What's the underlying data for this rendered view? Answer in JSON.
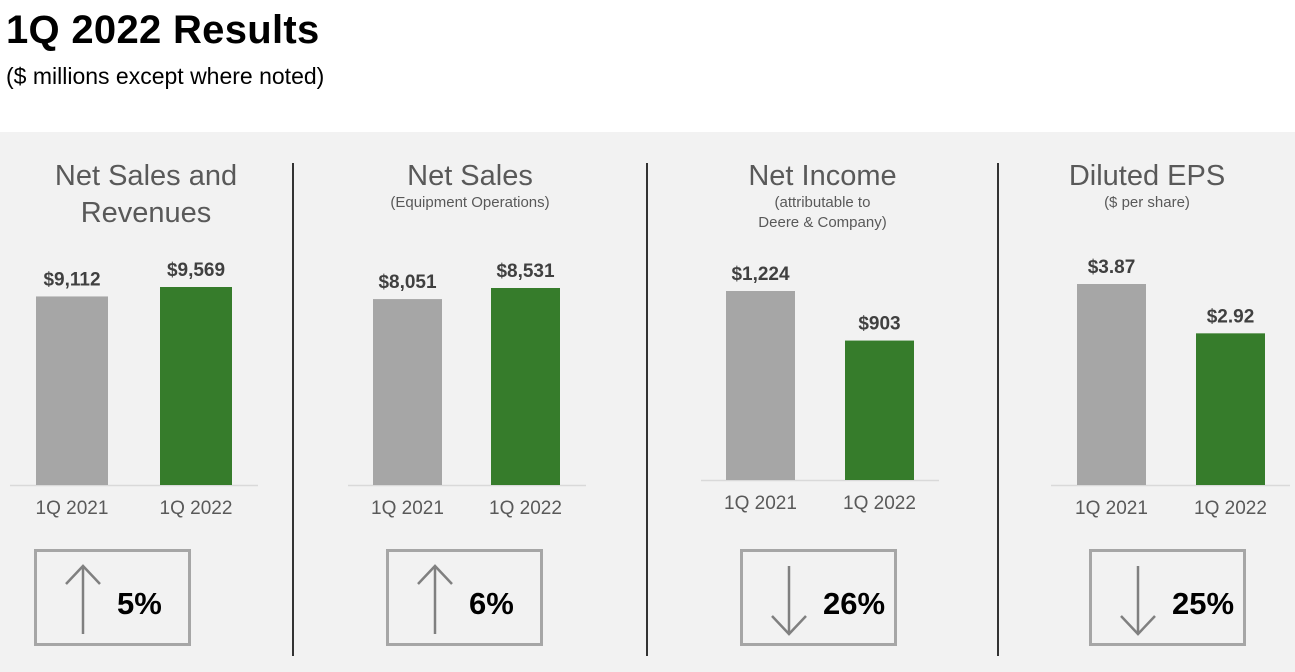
{
  "title": "1Q 2022 Results",
  "subtitle": "($ millions except where noted)",
  "colors": {
    "prior": "#a6a6a6",
    "current": "#367c2b",
    "panel_bg": "#f2f2f2",
    "divider": "#333333"
  },
  "chart_data": [
    {
      "type": "bar",
      "title": "Net Sales and Revenues",
      "title_lines": [
        "Net Sales and",
        "Revenues"
      ],
      "note_lines": [],
      "categories": [
        "1Q 2021",
        "1Q 2022"
      ],
      "values": [
        9112,
        9569
      ],
      "value_labels": [
        "$9,112",
        "$9,569"
      ],
      "change": {
        "direction": "up",
        "icon": "arrow-up-icon",
        "label": "5%"
      }
    },
    {
      "type": "bar",
      "title": "Net Sales",
      "title_lines": [
        "Net Sales"
      ],
      "note_lines": [
        "(Equipment Operations)"
      ],
      "categories": [
        "1Q 2021",
        "1Q 2022"
      ],
      "values": [
        8051,
        8531
      ],
      "value_labels": [
        "$8,051",
        "$8,531"
      ],
      "change": {
        "direction": "up",
        "icon": "arrow-up-icon",
        "label": "6%"
      }
    },
    {
      "type": "bar",
      "title": "Net Income",
      "title_lines": [
        "Net Income"
      ],
      "note_lines": [
        "(attributable to",
        "Deere & Company)"
      ],
      "categories": [
        "1Q 2021",
        "1Q 2022"
      ],
      "values": [
        1224,
        903
      ],
      "value_labels": [
        "$1,224",
        "$903"
      ],
      "change": {
        "direction": "down",
        "icon": "arrow-down-icon",
        "label": "26%"
      }
    },
    {
      "type": "bar",
      "title": "Diluted EPS",
      "title_lines": [
        "Diluted EPS"
      ],
      "note_lines": [
        "($ per share)"
      ],
      "categories": [
        "1Q 2021",
        "1Q 2022"
      ],
      "values": [
        3.87,
        2.92
      ],
      "value_labels": [
        "$3.87",
        "$2.92"
      ],
      "change": {
        "direction": "down",
        "icon": "arrow-down-icon",
        "label": "25%"
      }
    }
  ]
}
